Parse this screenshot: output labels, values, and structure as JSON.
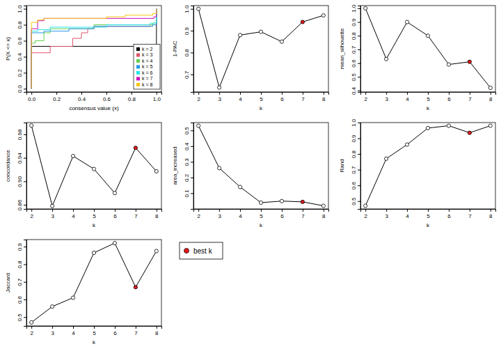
{
  "chart_data": [
    {
      "type": "line",
      "line_style": "step",
      "x_label": "consensus value (x)",
      "y_label": "P(X <= x)",
      "legend": "bottomright",
      "xlim": [
        -0.04,
        1.04
      ],
      "ylim": [
        -0.04,
        1.04
      ],
      "xticks": [
        {
          "value": 0,
          "label": "0.0"
        },
        0.2,
        0.4,
        0.6,
        0.8,
        {
          "value": 1,
          "label": "1.0"
        }
      ],
      "yticks": [
        {
          "value": 0,
          "label": "0.0"
        },
        0.2,
        0.4,
        0.6,
        0.8,
        {
          "value": 1,
          "label": "1.0"
        }
      ],
      "series": [
        {
          "name": "k = 2",
          "color": "#000000",
          "x": [
            0,
            0,
            1
          ],
          "values": [
            0,
            0.53,
            1
          ]
        },
        {
          "name": "k = 3",
          "color": "#DF536B",
          "x": [
            0,
            0,
            0.15,
            0.33,
            0.4,
            0.45,
            0.5,
            0.95,
            1
          ],
          "values": [
            0,
            0.45,
            0.53,
            0.63,
            0.7,
            0.75,
            0.78,
            0.8,
            1
          ]
        },
        {
          "name": "k = 4",
          "color": "#61D04F",
          "x": [
            0,
            0,
            0.03,
            0.1,
            0.15,
            0.5,
            0.97,
            1
          ],
          "values": [
            0,
            0.57,
            0.6,
            0.7,
            0.75,
            0.8,
            0.82,
            1
          ]
        },
        {
          "name": "k = 5",
          "color": "#2297E6",
          "x": [
            0,
            0,
            0.1,
            0.3,
            0.5,
            0.97,
            1
          ],
          "values": [
            0,
            0.7,
            0.72,
            0.75,
            0.78,
            0.8,
            1
          ]
        },
        {
          "name": "k = 6",
          "color": "#28E2E5",
          "x": [
            0,
            0,
            0.05,
            0.15,
            0.6,
            0.95,
            1
          ],
          "values": [
            0,
            0.72,
            0.74,
            0.77,
            0.8,
            0.82,
            1
          ]
        },
        {
          "name": "k = 7",
          "color": "#CD0BBC",
          "x": [
            0,
            0,
            0.05,
            0.1,
            0.98,
            1
          ],
          "values": [
            0,
            0.75,
            0.85,
            0.88,
            0.9,
            1
          ]
        },
        {
          "name": "k = 8",
          "color": "#F5C710",
          "x": [
            0,
            0,
            0.05,
            0.1,
            0.6,
            0.75,
            0.97,
            1
          ],
          "values": [
            0,
            0.83,
            0.86,
            0.88,
            0.9,
            0.92,
            0.94,
            1
          ]
        }
      ]
    },
    {
      "type": "line",
      "marker": "circle",
      "x_label": "k",
      "y_label": "1-PAC",
      "x": [
        2,
        3,
        4,
        5,
        6,
        7,
        8
      ],
      "xlim": [
        1.76,
        8.24
      ],
      "ylim": [
        0.62,
        1.015
      ],
      "xticks": [
        2,
        3,
        4,
        5,
        6,
        7,
        8
      ],
      "yticks": [
        0.7,
        0.8,
        0.9,
        {
          "value": 1,
          "label": "1.0"
        }
      ],
      "series": [
        {
          "color": "#000000",
          "values": [
            1.0,
            0.64,
            0.88,
            0.895,
            0.85,
            0.94,
            0.97
          ],
          "colors": [
            "#ffffff",
            "#ffffff",
            "#ffffff",
            "#ffffff",
            "#ffffff",
            "#e41a1c",
            "#ffffff"
          ]
        }
      ]
    },
    {
      "type": "line",
      "marker": "circle",
      "x_label": "k",
      "y_label": "mean_silhouette",
      "x": [
        2,
        3,
        4,
        5,
        6,
        7,
        8
      ],
      "xlim": [
        1.76,
        8.24
      ],
      "ylim": [
        0.39,
        1.02
      ],
      "xticks": [
        2,
        3,
        4,
        5,
        6,
        7,
        8
      ],
      "yticks": [
        0.4,
        0.5,
        0.6,
        0.7,
        0.8,
        0.9,
        {
          "value": 1,
          "label": "1.0"
        }
      ],
      "series": [
        {
          "color": "#000000",
          "values": [
            1.0,
            0.63,
            0.9,
            0.8,
            0.59,
            0.61,
            0.42
          ],
          "colors": [
            "#ffffff",
            "#ffffff",
            "#ffffff",
            "#ffffff",
            "#ffffff",
            "#e41a1c",
            "#ffffff"
          ]
        }
      ]
    },
    {
      "type": "line",
      "marker": "circle",
      "x_label": "k",
      "y_label": "concordance",
      "x": [
        2,
        3,
        4,
        5,
        6,
        7,
        8
      ],
      "xlim": [
        1.76,
        8.24
      ],
      "ylim": [
        0.853,
        1.0
      ],
      "xticks": [
        2,
        3,
        4,
        5,
        6,
        7,
        8
      ],
      "yticks": [
        {
          "value": 0.86,
          "label": "0.86"
        },
        {
          "value": 0.9,
          "label": "0.90"
        },
        {
          "value": 0.94,
          "label": "0.94"
        },
        {
          "value": 0.98,
          "label": "0.98"
        }
      ],
      "series": [
        {
          "color": "#000000",
          "values": [
            0.995,
            0.858,
            0.943,
            0.921,
            0.88,
            0.957,
            0.917
          ],
          "colors": [
            "#ffffff",
            "#ffffff",
            "#ffffff",
            "#ffffff",
            "#ffffff",
            "#e41a1c",
            "#ffffff"
          ]
        }
      ]
    },
    {
      "type": "line",
      "marker": "circle",
      "x_label": "k",
      "y_label": "area_increased",
      "x": [
        2,
        3,
        4,
        5,
        6,
        7,
        8
      ],
      "xlim": [
        1.76,
        8.24
      ],
      "ylim": [
        0.0,
        0.55
      ],
      "xticks": [
        2,
        3,
        4,
        5,
        6,
        7,
        8
      ],
      "yticks": [
        0.1,
        0.2,
        0.3,
        0.4,
        0.5
      ],
      "series": [
        {
          "color": "#000000",
          "values": [
            0.53,
            0.26,
            0.14,
            0.04,
            0.05,
            0.045,
            0.02
          ],
          "colors": [
            "#ffffff",
            "#ffffff",
            "#ffffff",
            "#ffffff",
            "#ffffff",
            "#e41a1c",
            "#ffffff"
          ]
        }
      ]
    },
    {
      "type": "line",
      "marker": "circle",
      "x_label": "k",
      "y_label": "Rand",
      "x": [
        2,
        3,
        4,
        5,
        6,
        7,
        8
      ],
      "xlim": [
        1.76,
        8.24
      ],
      "ylim": [
        0.45,
        1.0
      ],
      "xticks": [
        2,
        3,
        4,
        5,
        6,
        7,
        8
      ],
      "yticks": [
        0.5,
        0.6,
        0.7,
        0.8,
        0.9,
        {
          "value": 1,
          "label": "1.0"
        }
      ],
      "series": [
        {
          "color": "#000000",
          "values": [
            0.47,
            0.77,
            0.86,
            0.965,
            0.98,
            0.935,
            0.98
          ],
          "colors": [
            "#ffffff",
            "#ffffff",
            "#ffffff",
            "#ffffff",
            "#ffffff",
            "#e41a1c",
            "#ffffff"
          ]
        }
      ]
    },
    {
      "type": "line",
      "marker": "circle",
      "x_label": "k",
      "y_label": "Jaccard",
      "x": [
        2,
        3,
        4,
        5,
        6,
        7,
        8
      ],
      "xlim": [
        1.76,
        8.24
      ],
      "ylim": [
        0.45,
        0.94
      ],
      "xticks": [
        2,
        3,
        4,
        5,
        6,
        7,
        8
      ],
      "yticks": [
        0.5,
        0.6,
        0.7,
        0.8,
        0.9
      ],
      "series": [
        {
          "color": "#000000",
          "values": [
            0.47,
            0.56,
            0.61,
            0.865,
            0.92,
            0.67,
            0.875
          ],
          "colors": [
            "#ffffff",
            "#ffffff",
            "#ffffff",
            "#ffffff",
            "#ffffff",
            "#e41a1c",
            "#ffffff"
          ]
        }
      ]
    },
    {
      "type": "legend",
      "marker": "circle",
      "series": [
        {
          "name": "best k",
          "color": "#e41a1c"
        }
      ]
    }
  ]
}
